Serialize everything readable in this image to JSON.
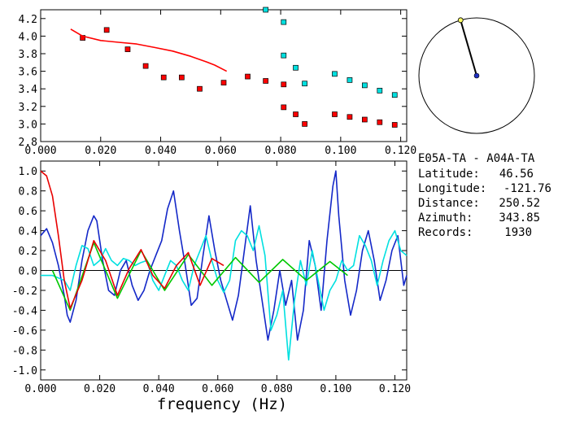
{
  "info": {
    "title": "E05A-TA - A04A-TA",
    "rows": [
      {
        "label": "Latitude:",
        "value": "46.56"
      },
      {
        "label": "Longitude:",
        "value": "-121.76"
      },
      {
        "label": "Distance:",
        "value": "250.52"
      },
      {
        "label": "Azimuth:",
        "value": "343.85"
      },
      {
        "label": "Records:",
        "value": "1930"
      }
    ]
  },
  "compass": {
    "azimuth_deg": 343.85,
    "colors": {
      "needle": "#000000",
      "tip": "#ffff66",
      "center": "#1f2fbf"
    }
  },
  "chart_data": [
    {
      "type": "scatter",
      "xlim": [
        0.0,
        0.122
      ],
      "ylim": [
        2.8,
        4.3
      ],
      "xticks": [
        "0.000",
        "0.020",
        "0.040",
        "0.060",
        "0.080",
        "0.100",
        "0.120"
      ],
      "yticks": [
        "2.8",
        "3.0",
        "3.2",
        "3.4",
        "3.6",
        "3.8",
        "4.0",
        "4.2"
      ],
      "series": [
        {
          "color": "#ff0000",
          "kind": "points",
          "points": [
            [
              0.014,
              3.98
            ],
            [
              0.022,
              4.07
            ],
            [
              0.029,
              3.85
            ],
            [
              0.035,
              3.66
            ],
            [
              0.041,
              3.53
            ],
            [
              0.047,
              3.53
            ],
            [
              0.053,
              3.4
            ],
            [
              0.061,
              3.47
            ],
            [
              0.069,
              3.54
            ],
            [
              0.075,
              3.49
            ],
            [
              0.081,
              3.45
            ],
            [
              0.081,
              3.19
            ],
            [
              0.085,
              3.11
            ],
            [
              0.088,
              3.0
            ],
            [
              0.098,
              3.11
            ],
            [
              0.103,
              3.08
            ],
            [
              0.108,
              3.05
            ],
            [
              0.113,
              3.02
            ],
            [
              0.118,
              2.99
            ]
          ]
        },
        {
          "color": "#00e0e0",
          "kind": "points",
          "points": [
            [
              0.075,
              4.3
            ],
            [
              0.081,
              4.16
            ],
            [
              0.081,
              3.78
            ],
            [
              0.085,
              3.64
            ],
            [
              0.088,
              3.46
            ],
            [
              0.098,
              3.57
            ],
            [
              0.103,
              3.5
            ],
            [
              0.108,
              3.44
            ],
            [
              0.113,
              3.38
            ],
            [
              0.118,
              3.33
            ]
          ]
        },
        {
          "color": "#ff0000",
          "kind": "line",
          "points": [
            [
              0.01,
              4.08
            ],
            [
              0.014,
              4.0
            ],
            [
              0.02,
              3.95
            ],
            [
              0.026,
              3.93
            ],
            [
              0.032,
              3.91
            ],
            [
              0.038,
              3.87
            ],
            [
              0.044,
              3.83
            ],
            [
              0.05,
              3.77
            ],
            [
              0.055,
              3.71
            ],
            [
              0.058,
              3.67
            ],
            [
              0.062,
              3.6
            ]
          ]
        }
      ]
    },
    {
      "type": "line",
      "xlabel": "frequency (Hz)",
      "xlim": [
        0.0,
        0.124
      ],
      "ylim": [
        -1.1,
        1.1
      ],
      "xticks": [
        "0.000",
        "0.020",
        "0.040",
        "0.060",
        "0.080",
        "0.100",
        "0.120"
      ],
      "yticks": [
        "-1.0",
        "-0.8",
        "-0.6",
        "-0.4",
        "-0.2",
        "0.0",
        "0.2",
        "0.4",
        "0.6",
        "0.8",
        "1.0"
      ],
      "series": [
        {
          "color": "#1428c8",
          "x": [
            0.0,
            0.002,
            0.004,
            0.006,
            0.008,
            0.009,
            0.01,
            0.012,
            0.014,
            0.016,
            0.018,
            0.019,
            0.021,
            0.023,
            0.025,
            0.027,
            0.029,
            0.031,
            0.033,
            0.035,
            0.037,
            0.039,
            0.041,
            0.043,
            0.045,
            0.047,
            0.049,
            0.051,
            0.053,
            0.055,
            0.057,
            0.059,
            0.061,
            0.063,
            0.065,
            0.067,
            0.069,
            0.071,
            0.073,
            0.075,
            0.077,
            0.079,
            0.081,
            0.083,
            0.085,
            0.087,
            0.089,
            0.091,
            0.093,
            0.095,
            0.097,
            0.099,
            0.1,
            0.101,
            0.103,
            0.105,
            0.107,
            0.109,
            0.111,
            0.113,
            0.115,
            0.117,
            0.119,
            0.121,
            0.123,
            0.124
          ],
          "y": [
            0.35,
            0.42,
            0.28,
            0.05,
            -0.25,
            -0.45,
            -0.52,
            -0.3,
            0.1,
            0.4,
            0.55,
            0.5,
            0.1,
            -0.2,
            -0.25,
            0.0,
            0.1,
            -0.15,
            -0.3,
            -0.2,
            0.0,
            0.15,
            0.3,
            0.62,
            0.8,
            0.4,
            0.05,
            -0.35,
            -0.28,
            0.15,
            0.55,
            0.2,
            -0.1,
            -0.3,
            -0.5,
            -0.25,
            0.2,
            0.65,
            0.1,
            -0.3,
            -0.7,
            -0.4,
            0.0,
            -0.35,
            -0.1,
            -0.7,
            -0.4,
            0.3,
            0.05,
            -0.4,
            0.3,
            0.85,
            1.0,
            0.55,
            -0.1,
            -0.45,
            -0.2,
            0.2,
            0.4,
            0.1,
            -0.3,
            -0.1,
            0.2,
            0.35,
            -0.15,
            -0.05
          ]
        },
        {
          "color": "#00e0e0",
          "x": [
            0.0,
            0.004,
            0.008,
            0.01,
            0.012,
            0.014,
            0.016,
            0.018,
            0.02,
            0.022,
            0.024,
            0.026,
            0.028,
            0.03,
            0.032,
            0.034,
            0.036,
            0.038,
            0.04,
            0.042,
            0.044,
            0.046,
            0.048,
            0.05,
            0.052,
            0.054,
            0.056,
            0.058,
            0.06,
            0.062,
            0.064,
            0.066,
            0.068,
            0.07,
            0.072,
            0.074,
            0.076,
            0.078,
            0.08,
            0.082,
            0.084,
            0.086,
            0.088,
            0.09,
            0.092,
            0.094,
            0.096,
            0.098,
            0.1,
            0.102,
            0.104,
            0.106,
            0.108,
            0.11,
            0.112,
            0.114,
            0.116,
            0.118,
            0.12,
            0.122,
            0.124
          ],
          "y": [
            -0.05,
            -0.05,
            -0.1,
            -0.2,
            0.05,
            0.25,
            0.22,
            0.05,
            0.1,
            0.22,
            0.1,
            0.05,
            0.12,
            0.1,
            0.05,
            0.08,
            0.1,
            -0.1,
            -0.2,
            -0.05,
            0.1,
            0.05,
            -0.1,
            -0.2,
            0.05,
            0.2,
            0.35,
            0.1,
            -0.1,
            -0.22,
            -0.1,
            0.3,
            0.4,
            0.35,
            0.2,
            0.45,
            0.15,
            -0.6,
            -0.45,
            -0.2,
            -0.9,
            -0.3,
            0.1,
            -0.15,
            0.2,
            -0.1,
            -0.4,
            -0.2,
            -0.1,
            0.1,
            0.0,
            0.05,
            0.35,
            0.25,
            0.1,
            -0.15,
            0.1,
            0.3,
            0.4,
            0.2,
            0.15
          ]
        },
        {
          "color": "#00c800",
          "x": [
            0.004,
            0.01,
            0.018,
            0.026,
            0.034,
            0.042,
            0.05,
            0.058,
            0.066,
            0.074,
            0.082,
            0.09,
            0.098,
            0.104
          ],
          "y": [
            0.0,
            -0.4,
            0.28,
            -0.28,
            0.2,
            -0.2,
            0.16,
            -0.15,
            0.13,
            -0.12,
            0.11,
            -0.1,
            0.09,
            -0.05
          ]
        },
        {
          "color": "#e80000",
          "x": [
            0.0,
            0.002,
            0.004,
            0.006,
            0.008,
            0.01,
            0.014,
            0.018,
            0.022,
            0.026,
            0.03,
            0.034,
            0.038,
            0.042,
            0.046,
            0.05,
            0.054,
            0.058,
            0.062
          ],
          "y": [
            1.0,
            0.95,
            0.75,
            0.35,
            -0.1,
            -0.38,
            -0.1,
            0.3,
            0.1,
            -0.25,
            0.02,
            0.21,
            -0.05,
            -0.18,
            0.05,
            0.18,
            -0.15,
            0.12,
            0.05
          ]
        }
      ]
    }
  ]
}
